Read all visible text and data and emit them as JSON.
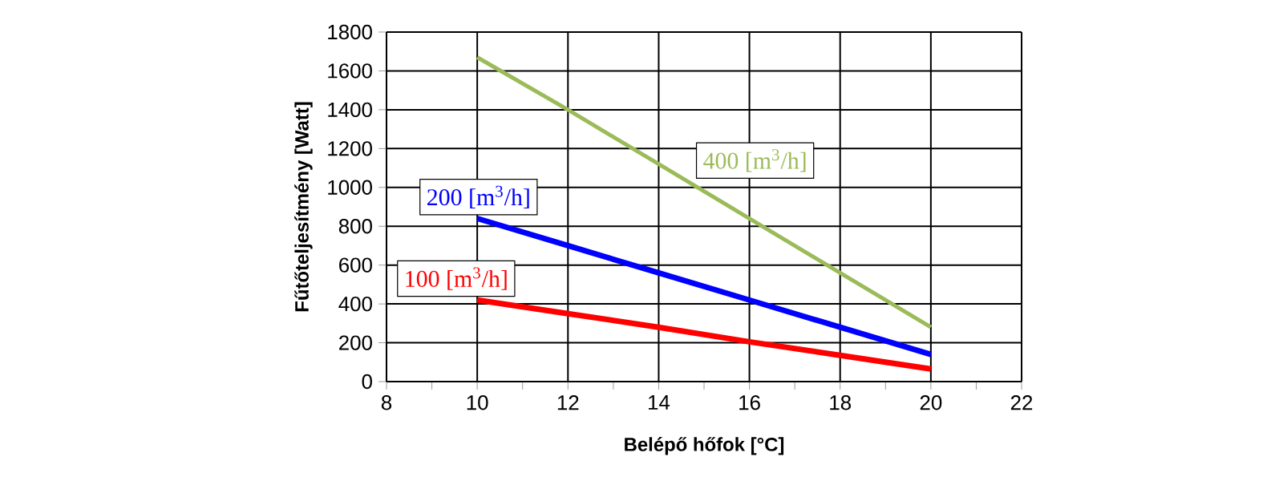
{
  "chart_data": {
    "type": "line",
    "xlabel": "Belépő hőfok [°C]",
    "ylabel": "Fűtőteljesítmény [Watt]",
    "x": [
      10,
      12,
      14,
      16,
      18,
      20
    ],
    "series": [
      {
        "name": "400 [m$^{3}$/h]",
        "color": "#9bbb59",
        "values": [
          1670,
          1400,
          1120,
          840,
          560,
          280
        ]
      },
      {
        "name": "200 [m$^{3}$/h]",
        "color": "#0000ff",
        "values": [
          840,
          700,
          560,
          420,
          280,
          140
        ]
      },
      {
        "name": "100 [m$^{3}$/h]",
        "color": "#ff0000",
        "values": [
          420,
          350,
          280,
          205,
          135,
          65
        ]
      }
    ],
    "xlim": [
      8,
      22
    ],
    "xticks": [
      8,
      10,
      12,
      14,
      16,
      18,
      20,
      22
    ],
    "ylim": [
      0,
      1800
    ],
    "yticks": [
      0,
      200,
      400,
      600,
      800,
      1000,
      1200,
      1400,
      1600,
      1800
    ],
    "grid": true,
    "marker": "none",
    "line_style": "solid"
  }
}
